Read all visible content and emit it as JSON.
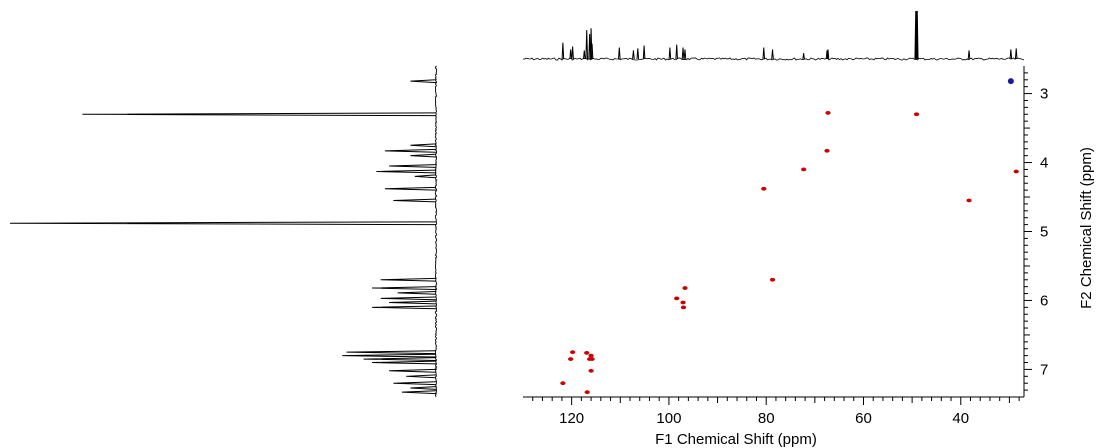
{
  "chart_data": {
    "type": "scatter",
    "subtype": "2D NMR (HSQC-style) contour plot with 1D projections",
    "xlabel": "F1 Chemical Shift (ppm)",
    "ylabel": "F2 Chemical Shift (ppm)",
    "xlim": [
      130,
      27
    ],
    "ylim": [
      2.6,
      7.4
    ],
    "x_reversed": true,
    "y_reversed": true,
    "xticks": [
      120,
      100,
      80,
      60,
      40
    ],
    "yticks": [
      3,
      4,
      5,
      6,
      7
    ],
    "grid": false,
    "series": [
      {
        "color": "#cc0000",
        "points": [
          {
            "x": 67.3,
            "y": 3.28
          },
          {
            "x": 49.1,
            "y": 3.3
          },
          {
            "x": 67.5,
            "y": 3.83
          },
          {
            "x": 72.3,
            "y": 4.1
          },
          {
            "x": 28.6,
            "y": 4.13
          },
          {
            "x": 80.5,
            "y": 4.38
          },
          {
            "x": 38.3,
            "y": 4.55
          },
          {
            "x": 78.7,
            "y": 5.7
          },
          {
            "x": 96.7,
            "y": 5.82
          },
          {
            "x": 98.4,
            "y": 5.97
          },
          {
            "x": 97.1,
            "y": 6.03
          },
          {
            "x": 97.0,
            "y": 6.1
          },
          {
            "x": 119.8,
            "y": 6.75
          },
          {
            "x": 116.9,
            "y": 6.76
          },
          {
            "x": 116.0,
            "y": 6.8
          },
          {
            "x": 115.8,
            "y": 6.85
          },
          {
            "x": 120.2,
            "y": 6.85
          },
          {
            "x": 116.3,
            "y": 6.85
          },
          {
            "x": 116.0,
            "y": 7.02
          },
          {
            "x": 121.8,
            "y": 7.2
          },
          {
            "x": 116.8,
            "y": 7.33
          }
        ]
      },
      {
        "color": "#1a1aa0",
        "points": [
          {
            "x": 29.7,
            "y": 2.82
          }
        ]
      }
    ],
    "projections": {
      "top": {
        "axis": "F1",
        "peaks": [
          {
            "x": 121.8,
            "h": 0.34
          },
          {
            "x": 120.2,
            "h": 0.2
          },
          {
            "x": 119.8,
            "h": 0.26
          },
          {
            "x": 117.4,
            "h": 0.18
          },
          {
            "x": 116.9,
            "h": 0.6
          },
          {
            "x": 116.3,
            "h": 0.52
          },
          {
            "x": 116.0,
            "h": 0.64
          },
          {
            "x": 115.8,
            "h": 0.32
          },
          {
            "x": 110.2,
            "h": 0.24
          },
          {
            "x": 107.3,
            "h": 0.18
          },
          {
            "x": 106.4,
            "h": 0.22
          },
          {
            "x": 105.1,
            "h": 0.28
          },
          {
            "x": 99.8,
            "h": 0.24
          },
          {
            "x": 98.4,
            "h": 0.3
          },
          {
            "x": 97.1,
            "h": 0.24
          },
          {
            "x": 96.7,
            "h": 0.2
          },
          {
            "x": 80.5,
            "h": 0.24
          },
          {
            "x": 78.7,
            "h": 0.2
          },
          {
            "x": 72.3,
            "h": 0.12
          },
          {
            "x": 67.5,
            "h": 0.18
          },
          {
            "x": 67.3,
            "h": 0.2
          },
          {
            "x": 49.1,
            "h": 1.0
          },
          {
            "x": 38.3,
            "h": 0.18
          },
          {
            "x": 29.7,
            "h": 0.2
          },
          {
            "x": 28.6,
            "h": 0.22
          }
        ]
      },
      "left": {
        "axis": "F2",
        "peaks": [
          {
            "y": 2.82,
            "h": 0.06
          },
          {
            "y": 3.3,
            "h": 0.83
          },
          {
            "y": 3.75,
            "h": 0.06
          },
          {
            "y": 3.83,
            "h": 0.12
          },
          {
            "y": 3.9,
            "h": 0.06
          },
          {
            "y": 4.05,
            "h": 0.11
          },
          {
            "y": 4.13,
            "h": 0.14
          },
          {
            "y": 4.2,
            "h": 0.05
          },
          {
            "y": 4.38,
            "h": 0.12
          },
          {
            "y": 4.55,
            "h": 0.1
          },
          {
            "y": 4.88,
            "h": 1.0
          },
          {
            "y": 5.7,
            "h": 0.13
          },
          {
            "y": 5.82,
            "h": 0.15
          },
          {
            "y": 5.89,
            "h": 0.09
          },
          {
            "y": 5.97,
            "h": 0.13
          },
          {
            "y": 6.03,
            "h": 0.11
          },
          {
            "y": 6.1,
            "h": 0.15
          },
          {
            "y": 6.75,
            "h": 0.21
          },
          {
            "y": 6.8,
            "h": 0.22
          },
          {
            "y": 6.85,
            "h": 0.17
          },
          {
            "y": 6.9,
            "h": 0.15
          },
          {
            "y": 7.02,
            "h": 0.11
          },
          {
            "y": 7.1,
            "h": 0.07
          },
          {
            "y": 7.2,
            "h": 0.1
          },
          {
            "y": 7.27,
            "h": 0.06
          },
          {
            "y": 7.33,
            "h": 0.08
          }
        ]
      }
    }
  }
}
